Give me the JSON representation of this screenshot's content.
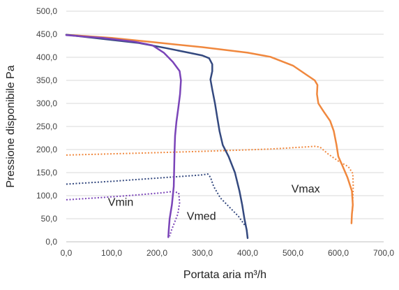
{
  "chart_data": {
    "type": "line",
    "xlabel": "Portata aria m³/h",
    "ylabel": "Pressione disponibile Pa",
    "xlim": [
      0,
      700
    ],
    "ylim": [
      0,
      500
    ],
    "x_ticks": [
      "0,0",
      "100,0",
      "200,0",
      "300,0",
      "400,0",
      "500,0",
      "600,0",
      "700,0"
    ],
    "y_ticks": [
      "0,0",
      "50,0",
      "100,0",
      "150,0",
      "200,0",
      "250,0",
      "300,0",
      "350,0",
      "400,0",
      "450,0",
      "500,0"
    ],
    "grid": "horizontal",
    "legend": "none",
    "series": [
      {
        "name": "Vmax",
        "color": "#f0883e",
        "style": "solid",
        "points": [
          [
            0,
            449
          ],
          [
            100,
            442
          ],
          [
            200,
            432
          ],
          [
            300,
            422
          ],
          [
            400,
            410
          ],
          [
            450,
            401
          ],
          [
            500,
            382
          ],
          [
            530,
            362
          ],
          [
            548,
            350
          ],
          [
            554,
            340
          ],
          [
            553,
            320
          ],
          [
            556,
            300
          ],
          [
            568,
            282
          ],
          [
            582,
            262
          ],
          [
            590,
            240
          ],
          [
            596,
            210
          ],
          [
            600,
            185
          ],
          [
            609,
            165
          ],
          [
            620,
            140
          ],
          [
            630,
            110
          ],
          [
            632,
            80
          ],
          [
            630,
            60
          ],
          [
            629,
            40
          ]
        ]
      },
      {
        "name": "Vmax",
        "color": "#f0883e",
        "style": "dotted",
        "points": [
          [
            0,
            188
          ],
          [
            150,
            192
          ],
          [
            300,
            196
          ],
          [
            450,
            201
          ],
          [
            550,
            207
          ],
          [
            560,
            205
          ],
          [
            578,
            190
          ],
          [
            600,
            175
          ],
          [
            622,
            163
          ],
          [
            632,
            148
          ],
          [
            633,
            120
          ],
          [
            632,
            95
          ],
          [
            631,
            65
          ]
        ]
      },
      {
        "name": "Vmed",
        "color": "#34497f",
        "style": "solid",
        "points": [
          [
            0,
            449
          ],
          [
            80,
            440
          ],
          [
            160,
            431
          ],
          [
            220,
            420
          ],
          [
            270,
            410
          ],
          [
            300,
            404
          ],
          [
            315,
            398
          ],
          [
            322,
            385
          ],
          [
            322,
            370
          ],
          [
            318,
            352
          ],
          [
            322,
            330
          ],
          [
            328,
            300
          ],
          [
            333,
            270
          ],
          [
            338,
            240
          ],
          [
            345,
            210
          ],
          [
            358,
            185
          ],
          [
            372,
            150
          ],
          [
            382,
            110
          ],
          [
            388,
            80
          ],
          [
            393,
            50
          ],
          [
            398,
            25
          ],
          [
            400,
            8
          ]
        ]
      },
      {
        "name": "Vmed",
        "color": "#34497f",
        "style": "dotted",
        "points": [
          [
            0,
            125
          ],
          [
            100,
            131
          ],
          [
            200,
            138
          ],
          [
            300,
            145
          ],
          [
            312,
            147
          ],
          [
            318,
            140
          ],
          [
            325,
            120
          ],
          [
            340,
            95
          ],
          [
            360,
            75
          ],
          [
            380,
            55
          ],
          [
            398,
            30
          ]
        ]
      },
      {
        "name": "Vmin",
        "color": "#7a44b8",
        "style": "solid",
        "points": [
          [
            0,
            448
          ],
          [
            80,
            442
          ],
          [
            150,
            434
          ],
          [
            190,
            426
          ],
          [
            215,
            410
          ],
          [
            235,
            390
          ],
          [
            250,
            370
          ],
          [
            253,
            350
          ],
          [
            251,
            320
          ],
          [
            247,
            290
          ],
          [
            243,
            260
          ],
          [
            240,
            230
          ],
          [
            239,
            200
          ],
          [
            238,
            160
          ],
          [
            237,
            120
          ],
          [
            233,
            80
          ],
          [
            228,
            50
          ],
          [
            226,
            25
          ],
          [
            225,
            10
          ]
        ]
      },
      {
        "name": "Vmin",
        "color": "#7a44b8",
        "style": "dotted",
        "points": [
          [
            0,
            91
          ],
          [
            80,
            96
          ],
          [
            150,
            101
          ],
          [
            210,
            106
          ],
          [
            235,
            109
          ],
          [
            248,
            106
          ],
          [
            250,
            85
          ],
          [
            246,
            60
          ],
          [
            238,
            40
          ],
          [
            232,
            25
          ],
          [
            228,
            12
          ]
        ]
      }
    ],
    "annotations": [
      {
        "text": "Vmin",
        "x": 120,
        "y": 78
      },
      {
        "text": "Vmed",
        "x": 298,
        "y": 48
      },
      {
        "text": "Vmax",
        "x": 528,
        "y": 107
      }
    ]
  }
}
